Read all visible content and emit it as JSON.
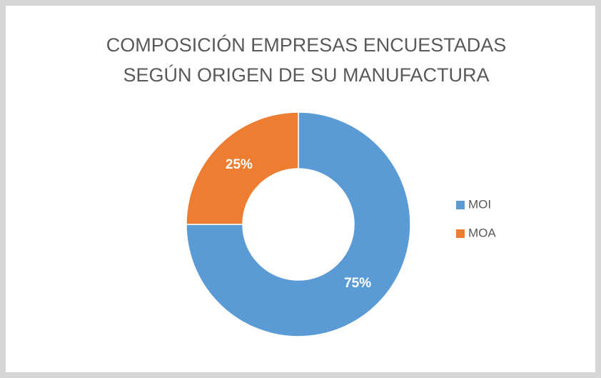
{
  "chart_data": {
    "type": "donut",
    "title": "COMPOSICIÓN EMPRESAS ENCUESTADAS SEGÚN ORIGEN DE SU MANUFACTURA",
    "categories": [
      "MOI",
      "MOA"
    ],
    "values": [
      75,
      25
    ],
    "value_labels": [
      "75%",
      "25%"
    ],
    "colors": [
      "#5b9bd5",
      "#ed7d31"
    ],
    "legend": "right"
  }
}
